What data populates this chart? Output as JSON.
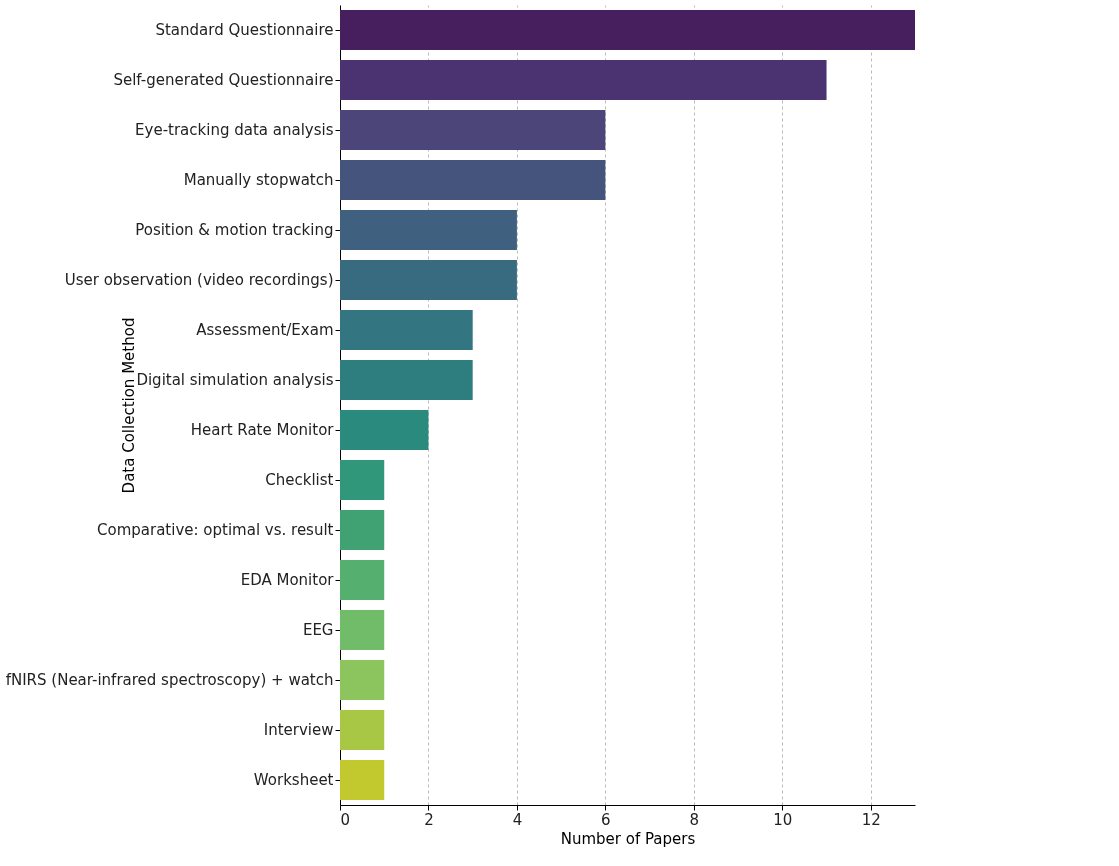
{
  "chart_data": {
    "type": "bar",
    "orientation": "horizontal",
    "xlabel": "Number of Papers",
    "ylabel": "Data Collection Method",
    "categories": [
      "Standard Questionnaire",
      "Self-generated Questionnaire",
      "Eye-tracking data analysis",
      "Manually stopwatch",
      "Position & motion tracking",
      "User observation (video recordings)",
      "Assessment/Exam",
      "Digital simulation analysis",
      "Heart Rate Monitor",
      "Checklist",
      "Comparative: optimal vs. result",
      "EDA Monitor",
      "EEG",
      "fNIRS (Near-infrared spectroscopy) + watch",
      "Interview",
      "Worksheet"
    ],
    "values": [
      13,
      11,
      6,
      6,
      4,
      4,
      3,
      3,
      2,
      1,
      1,
      1,
      1,
      1,
      1,
      1
    ],
    "colors": [
      "#481f5e",
      "#4a3370",
      "#4b4579",
      "#45547d",
      "#3f607f",
      "#396b80",
      "#337580",
      "#2e7e80",
      "#2a8a7e",
      "#31977a",
      "#40a273",
      "#55af6e",
      "#70bc68",
      "#8cc45e",
      "#a8c744",
      "#c2c92e"
    ],
    "xlim": [
      0,
      13
    ],
    "xticks": [
      0,
      2,
      4,
      6,
      8,
      10,
      12
    ],
    "grid": "x"
  }
}
